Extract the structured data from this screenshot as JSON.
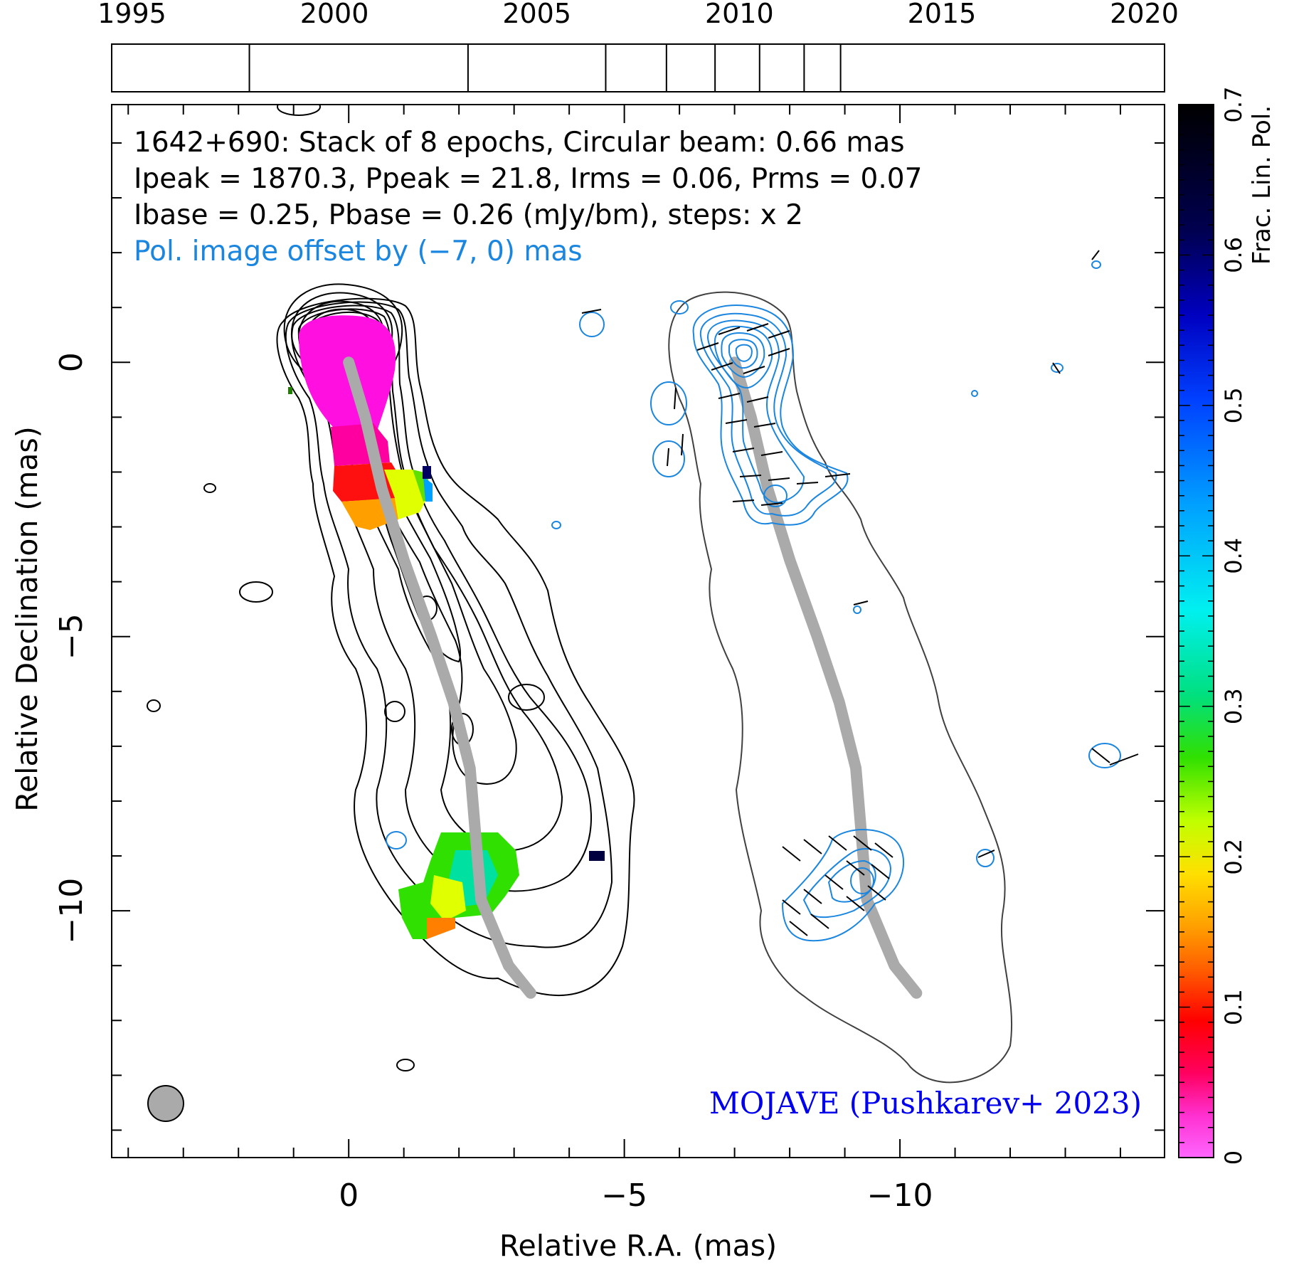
{
  "chart_data": {
    "type": "contour",
    "source": "1642+690",
    "header_lines": [
      "1642+690: Stack of 8 epochs, Circular beam: 0.66 mas",
      "Ipeak = 1870.3, Ppeak = 21.8, Irms = 0.06, Prms = 0.07",
      "Ibase = 0.25, Pbase = 0.26 (mJy/bm), steps: x 2"
    ],
    "offset_note": "Pol. image offset by (−7, 0) mas",
    "credit": "MOJAVE (Pushkarev+ 2023)",
    "xlabel": "Relative R.A. (mas)",
    "ylabel": "Relative Declination (mas)",
    "xlim": [
      4.3,
      -14.8
    ],
    "ylim": [
      -14.5,
      4.7
    ],
    "x_ticks": [
      0,
      -5,
      -10
    ],
    "x_tick_labels": [
      "0",
      "−5",
      "−10"
    ],
    "y_ticks": [
      0,
      -5,
      -10
    ],
    "y_tick_labels": [
      "0",
      "−5",
      "−10"
    ],
    "beam_fwhm_mas": 0.66,
    "epoch_axis": {
      "ticks": [
        1995,
        2000,
        2005,
        2010,
        2015,
        2020
      ],
      "tick_labels": [
        "1995",
        "2000",
        "2005",
        "2010",
        "2015",
        "2020"
      ],
      "range": [
        1994.5,
        2020.5
      ],
      "epochs": [
        1997.9,
        2003.3,
        2006.7,
        2008.2,
        2009.4,
        2010.5,
        2011.6,
        2012.5
      ]
    },
    "colorbar": {
      "label": "Frac. Lin. Pol.",
      "range": [
        0,
        0.7
      ],
      "ticks": [
        0,
        0.1,
        0.2,
        0.3,
        0.4,
        0.5,
        0.6,
        0.7
      ],
      "tick_labels": [
        "0",
        "0.1",
        "0.2",
        "0.3",
        "0.4",
        "0.5",
        "0.6",
        "0.7"
      ]
    },
    "ridgeline": [
      {
        "x": 0.0,
        "y": 0.0
      },
      {
        "x": -0.3,
        "y": -1.0
      },
      {
        "x": -0.6,
        "y": -2.3
      },
      {
        "x": -1.0,
        "y": -3.6
      },
      {
        "x": -1.5,
        "y": -5.0
      },
      {
        "x": -1.9,
        "y": -6.2
      },
      {
        "x": -2.2,
        "y": -7.4
      },
      {
        "x": -2.3,
        "y": -8.6
      },
      {
        "x": -2.4,
        "y": -9.8
      },
      {
        "x": -2.9,
        "y": -11.0
      },
      {
        "x": -3.3,
        "y": -11.5
      }
    ],
    "colors": {
      "stokes_i": "#000000",
      "polarization": "#1a86e0",
      "ridgeline": "#aaaaaa",
      "credit": "#0000ee"
    }
  }
}
